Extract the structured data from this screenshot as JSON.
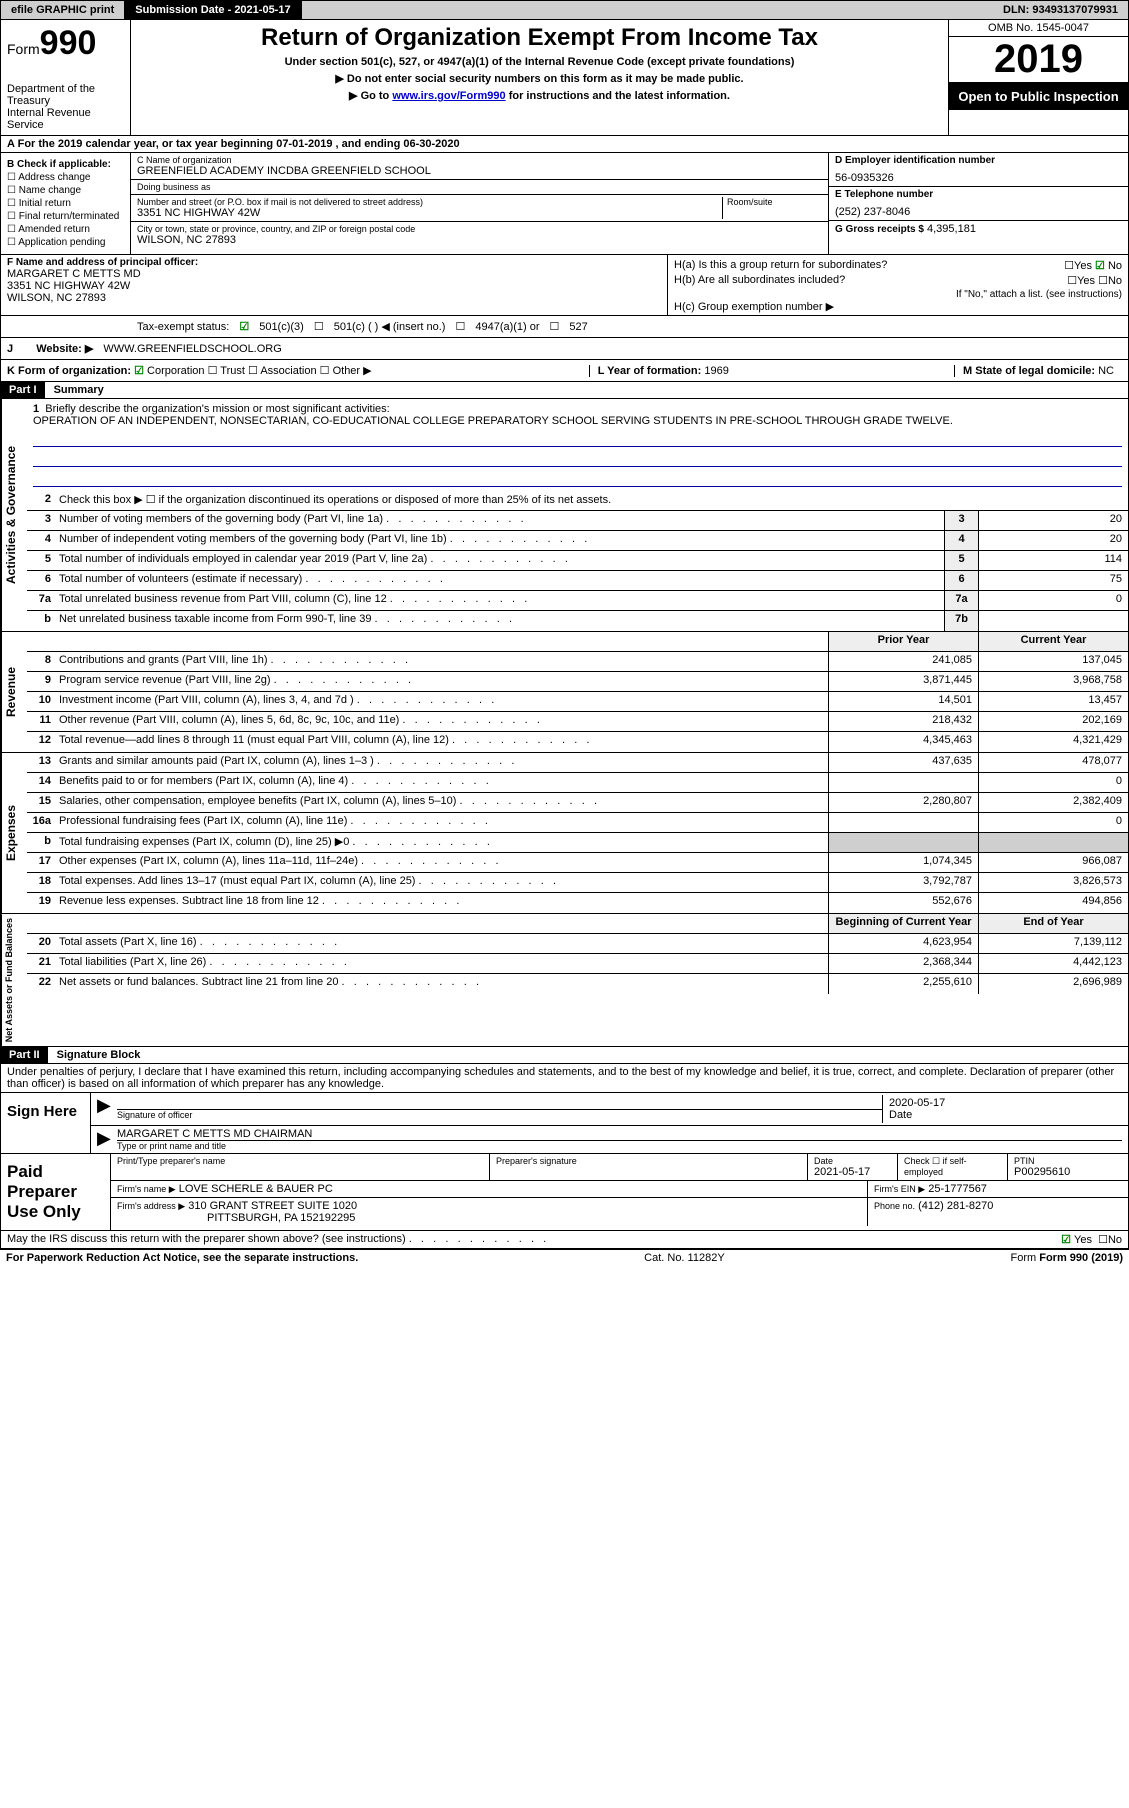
{
  "topbar": {
    "efile": "efile GRAPHIC print",
    "subdate_label": "Submission Date - 2021-05-17",
    "dln": "DLN: 93493137079931"
  },
  "header": {
    "form_label": "Form",
    "form_num": "990",
    "dept": "Department of the Treasury\nInternal Revenue Service",
    "title": "Return of Organization Exempt From Income Tax",
    "subtitle": "Under section 501(c), 527, or 4947(a)(1) of the Internal Revenue Code (except private foundations)",
    "note1": "Do not enter social security numbers on this form as it may be made public.",
    "note2_pre": "Go to ",
    "note2_link": "www.irs.gov/Form990",
    "note2_post": " for instructions and the latest information.",
    "omb": "OMB No. 1545-0047",
    "year": "2019",
    "inspect": "Open to Public Inspection"
  },
  "period": "For the 2019 calendar year, or tax year beginning 07-01-2019    , and ending 06-30-2020",
  "box_b": {
    "label": "B Check if applicable:",
    "items": [
      "Address change",
      "Name change",
      "Initial return",
      "Final return/terminated",
      "Amended return",
      "Application pending"
    ]
  },
  "box_c": {
    "name_label": "C Name of organization",
    "name": "GREENFIELD ACADEMY INCDBA GREENFIELD SCHOOL",
    "dba_label": "Doing business as",
    "dba": "",
    "addr_label": "Number and street (or P.O. box if mail is not delivered to street address)",
    "room_label": "Room/suite",
    "addr": "3351 NC HIGHWAY 42W",
    "city_label": "City or town, state or province, country, and ZIP or foreign postal code",
    "city": "WILSON, NC  27893"
  },
  "box_d": {
    "label": "D Employer identification number",
    "val": "56-0935326"
  },
  "box_e": {
    "label": "E Telephone number",
    "val": "(252) 237-8046"
  },
  "box_g": {
    "label": "G Gross receipts $",
    "val": "4,395,181"
  },
  "box_f": {
    "label": "F  Name and address of principal officer:",
    "name": "MARGARET C METTS MD",
    "addr": "3351 NC HIGHWAY 42W",
    "city": "WILSON, NC  27893"
  },
  "box_h": {
    "a_label": "H(a)  Is this a group return for subordinates?",
    "a_yes": "Yes",
    "a_no": "No",
    "b_label": "H(b)  Are all subordinates included?",
    "b_yes": "Yes",
    "b_no": "No",
    "b_note": "If \"No,\" attach a list. (see instructions)",
    "c_label": "H(c)  Group exemption number ▶"
  },
  "tax_status": {
    "label": "Tax-exempt status:",
    "opt1": "501(c)(3)",
    "opt2": "501(c) (   ) ◀ (insert no.)",
    "opt3": "4947(a)(1) or",
    "opt4": "527"
  },
  "website": {
    "label": "Website: ▶",
    "val": "WWW.GREENFIELDSCHOOL.ORG"
  },
  "box_k": {
    "label": "K Form of organization:",
    "opts": [
      "Corporation",
      "Trust",
      "Association",
      "Other ▶"
    ]
  },
  "box_l": {
    "label": "L Year of formation:",
    "val": "1969"
  },
  "box_m": {
    "label": "M State of legal domicile:",
    "val": "NC"
  },
  "part1": {
    "hdr": "Part I",
    "title": "Summary",
    "line1_label": "Briefly describe the organization's mission or most significant activities:",
    "line1_text": "OPERATION OF AN INDEPENDENT, NONSECTARIAN, CO-EDUCATIONAL COLLEGE PREPARATORY SCHOOL SERVING STUDENTS IN PRE-SCHOOL THROUGH GRADE TWELVE.",
    "line2": "Check this box ▶ ☐  if the organization discontinued its operations or disposed of more than 25% of its net assets.",
    "sidebar_ag": "Activities & Governance",
    "sidebar_rev": "Revenue",
    "sidebar_exp": "Expenses",
    "sidebar_na": "Net Assets or Fund Balances",
    "prior_year": "Prior Year",
    "current_year": "Current Year",
    "boy": "Beginning of Current Year",
    "eoy": "End of Year",
    "rows_ag": [
      {
        "n": "3",
        "t": "Number of voting members of the governing body (Part VI, line 1a)",
        "b": "3",
        "v": "20"
      },
      {
        "n": "4",
        "t": "Number of independent voting members of the governing body (Part VI, line 1b)",
        "b": "4",
        "v": "20"
      },
      {
        "n": "5",
        "t": "Total number of individuals employed in calendar year 2019 (Part V, line 2a)",
        "b": "5",
        "v": "114"
      },
      {
        "n": "6",
        "t": "Total number of volunteers (estimate if necessary)",
        "b": "6",
        "v": "75"
      },
      {
        "n": "7a",
        "t": "Total unrelated business revenue from Part VIII, column (C), line 12",
        "b": "7a",
        "v": "0"
      },
      {
        "n": "b",
        "t": "Net unrelated business taxable income from Form 990-T, line 39",
        "b": "7b",
        "v": ""
      }
    ],
    "rows_rev": [
      {
        "n": "8",
        "t": "Contributions and grants (Part VIII, line 1h)",
        "py": "241,085",
        "cy": "137,045"
      },
      {
        "n": "9",
        "t": "Program service revenue (Part VIII, line 2g)",
        "py": "3,871,445",
        "cy": "3,968,758"
      },
      {
        "n": "10",
        "t": "Investment income (Part VIII, column (A), lines 3, 4, and 7d )",
        "py": "14,501",
        "cy": "13,457"
      },
      {
        "n": "11",
        "t": "Other revenue (Part VIII, column (A), lines 5, 6d, 8c, 9c, 10c, and 11e)",
        "py": "218,432",
        "cy": "202,169"
      },
      {
        "n": "12",
        "t": "Total revenue—add lines 8 through 11 (must equal Part VIII, column (A), line 12)",
        "py": "4,345,463",
        "cy": "4,321,429"
      }
    ],
    "rows_exp": [
      {
        "n": "13",
        "t": "Grants and similar amounts paid (Part IX, column (A), lines 1–3 )",
        "py": "437,635",
        "cy": "478,077"
      },
      {
        "n": "14",
        "t": "Benefits paid to or for members (Part IX, column (A), line 4)",
        "py": "",
        "cy": "0"
      },
      {
        "n": "15",
        "t": "Salaries, other compensation, employee benefits (Part IX, column (A), lines 5–10)",
        "py": "2,280,807",
        "cy": "2,382,409"
      },
      {
        "n": "16a",
        "t": "Professional fundraising fees (Part IX, column (A), line 11e)",
        "py": "",
        "cy": "0"
      },
      {
        "n": "b",
        "t": "Total fundraising expenses (Part IX, column (D), line 25) ▶0",
        "py": "GREY",
        "cy": "GREY"
      },
      {
        "n": "17",
        "t": "Other expenses (Part IX, column (A), lines 11a–11d, 11f–24e)",
        "py": "1,074,345",
        "cy": "966,087"
      },
      {
        "n": "18",
        "t": "Total expenses. Add lines 13–17 (must equal Part IX, column (A), line 25)",
        "py": "3,792,787",
        "cy": "3,826,573"
      },
      {
        "n": "19",
        "t": "Revenue less expenses. Subtract line 18 from line 12",
        "py": "552,676",
        "cy": "494,856"
      }
    ],
    "rows_na": [
      {
        "n": "20",
        "t": "Total assets (Part X, line 16)",
        "py": "4,623,954",
        "cy": "7,139,112"
      },
      {
        "n": "21",
        "t": "Total liabilities (Part X, line 26)",
        "py": "2,368,344",
        "cy": "4,442,123"
      },
      {
        "n": "22",
        "t": "Net assets or fund balances. Subtract line 21 from line 20",
        "py": "2,255,610",
        "cy": "2,696,989"
      }
    ]
  },
  "part2": {
    "hdr": "Part II",
    "title": "Signature Block",
    "decl": "Under penalties of perjury, I declare that I have examined this return, including accompanying schedules and statements, and to the best of my knowledge and belief, it is true, correct, and complete. Declaration of preparer (other than officer) is based on all information of which preparer has any knowledge.",
    "sign_here": "Sign Here",
    "sig_officer": "Signature of officer",
    "sig_date_label": "Date",
    "sig_date": "2020-05-17",
    "sig_name": "MARGARET C METTS MD  CHAIRMAN",
    "sig_name_label": "Type or print name and title",
    "paid": "Paid Preparer Use Only",
    "prep_name_label": "Print/Type preparer's name",
    "prep_name": "",
    "prep_sig_label": "Preparer's signature",
    "prep_date_label": "Date",
    "prep_date": "2021-05-17",
    "prep_self": "Check ☐ if self-employed",
    "ptin_label": "PTIN",
    "ptin": "P00295610",
    "firm_name_label": "Firm's name    ▶",
    "firm_name": "LOVE SCHERLE & BAUER PC",
    "firm_ein_label": "Firm's EIN ▶",
    "firm_ein": "25-1777567",
    "firm_addr_label": "Firm's address ▶",
    "firm_addr": "310 GRANT STREET SUITE 1020",
    "firm_city": "PITTSBURGH, PA  152192295",
    "firm_phone_label": "Phone no.",
    "firm_phone": "(412) 281-8270",
    "discuss": "May the IRS discuss this return with the preparer shown above? (see instructions)",
    "discuss_yes": "Yes",
    "discuss_no": "No"
  },
  "footer": {
    "pra": "For Paperwork Reduction Act Notice, see the separate instructions.",
    "cat": "Cat. No. 11282Y",
    "form": "Form 990 (2019)"
  }
}
